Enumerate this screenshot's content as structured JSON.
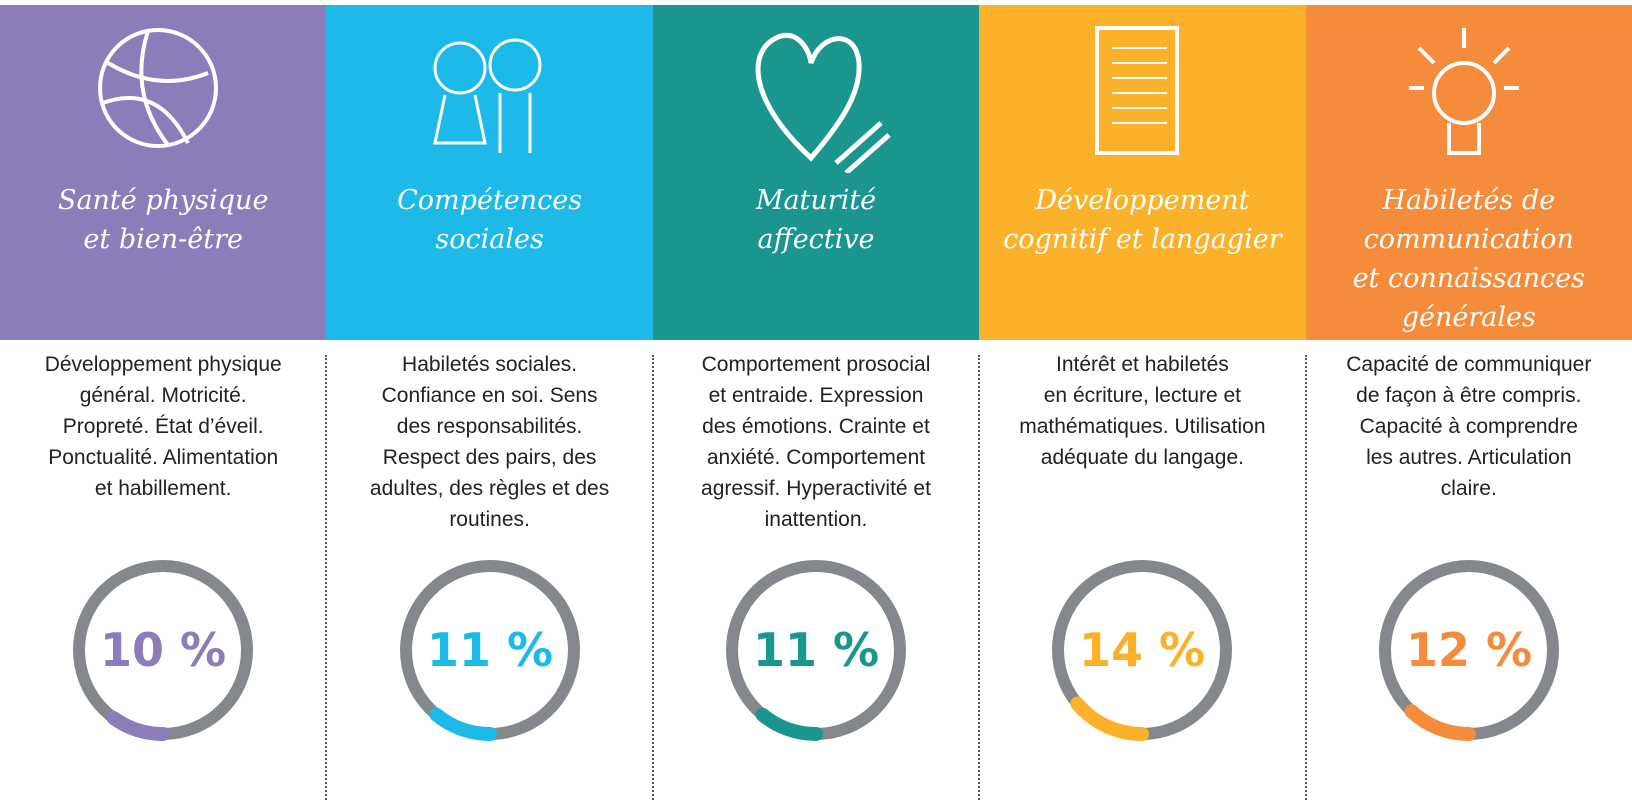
{
  "columns": [
    {
      "title_lines": [
        "Santé physique",
        "et bien-être"
      ],
      "description_lines": [
        "Développement physique",
        "général. Motricité.",
        "Propreté. État d’éveil.",
        "Ponctualité. Alimentation",
        "et habillement."
      ],
      "value": 10,
      "value_label": "10 %",
      "color": "#8c7cba"
    },
    {
      "title_lines": [
        "Compétences",
        "sociales"
      ],
      "description_lines": [
        "Habiletés sociales.",
        "Confiance en soi. Sens",
        "des responsabilités.",
        "Respect des pairs, des",
        "adultes, des règles et des",
        "routines."
      ],
      "value": 11,
      "value_label": "11 %",
      "color": "#1db9e9"
    },
    {
      "title_lines": [
        "Maturité",
        "affective"
      ],
      "description_lines": [
        "Comportement prosocial",
        "et entraide. Expression",
        "des émotions. Crainte et",
        "anxiété. Comportement",
        "agressif. Hyperactivité et",
        "inattention."
      ],
      "value": 11,
      "value_label": "11 %",
      "color": "#1a968f"
    },
    {
      "title_lines": [
        "Développement",
        "cognitif et langagier"
      ],
      "description_lines": [
        "Intérêt et habiletés",
        "en écriture, lecture et",
        "mathématiques. Utilisation",
        "adéquate du langage."
      ],
      "value": 14,
      "value_label": "14 %",
      "color": "#fbb22a"
    },
    {
      "title_lines": [
        "Habiletés de",
        "communication",
        "et connaissances",
        "générales"
      ],
      "description_lines": [
        "Capacité de communiquer",
        "de façon à être compris.",
        "Capacité à comprendre",
        "les autres. Articulation",
        "claire."
      ],
      "value": 12,
      "value_label": "12 %",
      "color": "#f58c3b"
    }
  ]
}
